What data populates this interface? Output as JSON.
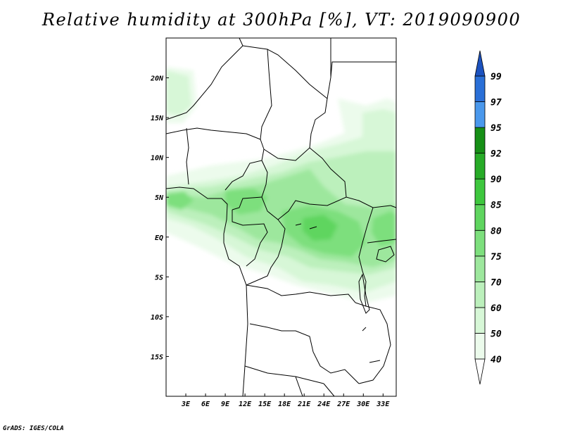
{
  "title": "Relative humidity at 300hPa [%], VT: 2019090900",
  "credit": "GrADS: IGES/COLA",
  "map": {
    "lon_range": [
      0,
      35
    ],
    "lat_range": [
      -20,
      25
    ],
    "lat_ticks": [
      {
        "value": 20,
        "label": "20N"
      },
      {
        "value": 15,
        "label": "15N"
      },
      {
        "value": 10,
        "label": "10N"
      },
      {
        "value": 5,
        "label": "5N"
      },
      {
        "value": 0,
        "label": "EQ"
      },
      {
        "value": -5,
        "label": "5S"
      },
      {
        "value": -10,
        "label": "10S"
      },
      {
        "value": -15,
        "label": "15S"
      }
    ],
    "lon_ticks": [
      {
        "value": 3,
        "label": "3E"
      },
      {
        "value": 6,
        "label": "6E"
      },
      {
        "value": 9,
        "label": "9E"
      },
      {
        "value": 12,
        "label": "12E"
      },
      {
        "value": 15,
        "label": "15E"
      },
      {
        "value": 18,
        "label": "18E"
      },
      {
        "value": 21,
        "label": "21E"
      },
      {
        "value": 24,
        "label": "24E"
      },
      {
        "value": 27,
        "label": "27E"
      },
      {
        "value": 30,
        "label": "30E"
      },
      {
        "value": 33,
        "label": "33E"
      }
    ]
  },
  "colorbar": {
    "levels": [
      "40",
      "50",
      "60",
      "70",
      "75",
      "80",
      "85",
      "90",
      "92",
      "95",
      "97",
      "99"
    ],
    "colors": [
      "#ffffff",
      "#ecfbec",
      "#d7f7d7",
      "#bcf0bc",
      "#9de79d",
      "#7ddf7d",
      "#5fd55f",
      "#3ec73e",
      "#27ab27",
      "#168f16",
      "#4a98ec",
      "#2a6fd7",
      "#1c52bf"
    ]
  }
}
